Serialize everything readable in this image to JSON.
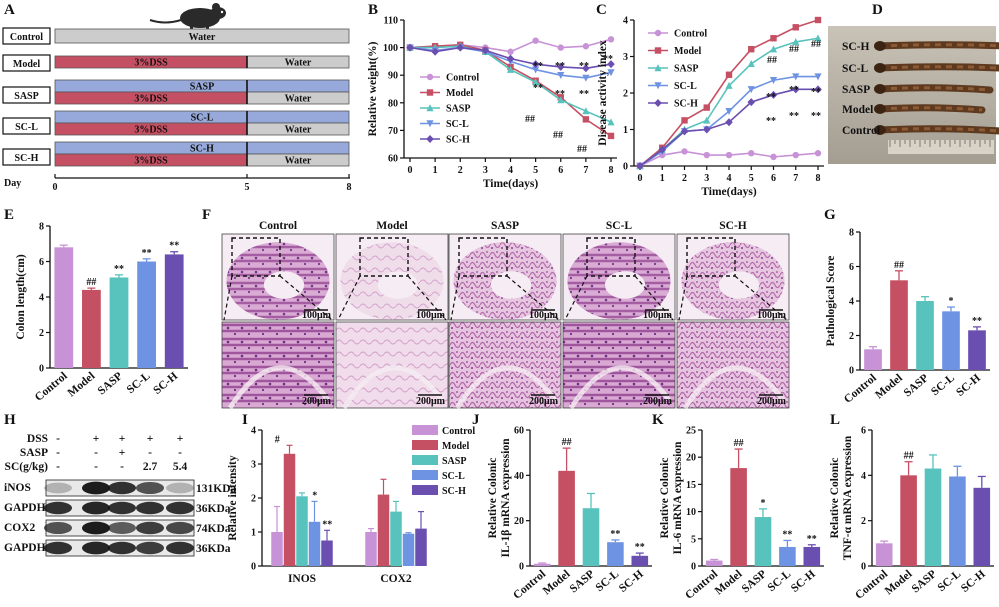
{
  "colors": {
    "control": "#c892d6",
    "model": "#c65063",
    "sasp": "#58c2bc",
    "scl": "#6f93e3",
    "sch": "#6a4fb0",
    "dss_bar": "#c65063",
    "water_bar": "#cccccc",
    "treat_bar": "#97a9da"
  },
  "panelA": {
    "letter": "A",
    "rows": [
      {
        "label": "Control",
        "top": "",
        "dss": "",
        "water": "Water"
      },
      {
        "label": "Model",
        "top": "",
        "dss": "3%DSS",
        "water": "Water"
      },
      {
        "label": "SASP",
        "top": "SASP",
        "dss": "3%DSS",
        "water": "Water"
      },
      {
        "label": "SC-L",
        "top": "SC-L",
        "dss": "3%DSS",
        "water": "Water"
      },
      {
        "label": "SC-H",
        "top": "SC-H",
        "dss": "3%DSS",
        "water": "Water"
      }
    ],
    "axis_label": "Day",
    "ticks": [
      "0",
      "5",
      "8"
    ]
  },
  "panelB": {
    "letter": "B",
    "chart_data": {
      "type": "line",
      "x": [
        0,
        1,
        2,
        3,
        4,
        5,
        6,
        7,
        8
      ],
      "xlabel": "Time(days)",
      "ylabel": "Relative weight(%)",
      "ylim": [
        60,
        110
      ],
      "yticks": [
        "60",
        "70",
        "80",
        "90",
        "100",
        "110"
      ],
      "xticks": [
        "0",
        "1",
        "2",
        "3",
        "4",
        "5",
        "6",
        "7",
        "8"
      ],
      "series": [
        {
          "name": "Control",
          "values": [
            100,
            100.5,
            101,
            100,
            98.5,
            102.5,
            100,
            100.5,
            103
          ]
        },
        {
          "name": "Model",
          "values": [
            100,
            100.5,
            101,
            99,
            93,
            88,
            82,
            74,
            68
          ]
        },
        {
          "name": "SASP",
          "values": [
            100,
            100,
            100.5,
            98.5,
            92,
            87.5,
            81,
            77,
            73
          ]
        },
        {
          "name": "SC-L",
          "values": [
            100,
            99,
            100,
            98.5,
            95,
            92,
            90,
            89,
            91
          ]
        },
        {
          "name": "SC-H",
          "values": [
            100,
            98.5,
            100,
            99,
            96,
            94,
            93,
            92.5,
            94
          ]
        }
      ],
      "annotations": [
        "**",
        "**",
        "**",
        "**",
        "**",
        "**",
        "**",
        "##",
        "##",
        "##"
      ]
    }
  },
  "panelC": {
    "letter": "C",
    "chart_data": {
      "type": "line",
      "x": [
        0,
        1,
        2,
        3,
        4,
        5,
        6,
        7,
        8
      ],
      "xlabel": "Time(days)",
      "ylabel": "Disease activity index",
      "ylim": [
        0,
        4
      ],
      "yticks": [
        "0",
        "1",
        "2",
        "3",
        "4"
      ],
      "xticks": [
        "0",
        "1",
        "2",
        "3",
        "4",
        "5",
        "6",
        "7",
        "8"
      ],
      "series": [
        {
          "name": "Control",
          "values": [
            0,
            0.3,
            0.4,
            0.3,
            0.3,
            0.35,
            0.25,
            0.3,
            0.35
          ]
        },
        {
          "name": "Model",
          "values": [
            0,
            0.5,
            1.25,
            1.6,
            2.5,
            3.2,
            3.5,
            3.8,
            4.0
          ]
        },
        {
          "name": "SASP",
          "values": [
            0,
            0.45,
            1.0,
            1.25,
            2.2,
            2.8,
            3.2,
            3.4,
            3.5
          ]
        },
        {
          "name": "SC-L",
          "values": [
            0,
            0.4,
            0.95,
            1.0,
            1.5,
            2.1,
            2.35,
            2.45,
            2.45
          ]
        },
        {
          "name": "SC-H",
          "values": [
            0,
            0.45,
            0.95,
            1.0,
            1.2,
            1.75,
            1.95,
            2.1,
            2.1
          ]
        }
      ],
      "annotations": [
        "##",
        "##",
        "##",
        "**",
        "**",
        "**",
        "**",
        "**",
        "**"
      ]
    }
  },
  "panelD": {
    "letter": "D",
    "labels": [
      "SC-H",
      "SC-L",
      "SASP",
      "Model",
      "Control"
    ]
  },
  "panelE": {
    "letter": "E",
    "chart_data": {
      "type": "bar",
      "categories": [
        "Control",
        "Model",
        "SASP",
        "SC-L",
        "SC-H"
      ],
      "values": [
        6.8,
        4.4,
        5.1,
        6.0,
        6.4
      ],
      "errors": [
        0.12,
        0.1,
        0.15,
        0.15,
        0.15
      ],
      "ylabel": "Colon length(cm)",
      "ylim": [
        0,
        8
      ],
      "yticks": [
        "0",
        "2",
        "4",
        "6",
        "8"
      ],
      "annotations": [
        "",
        "##",
        "**",
        "**",
        "**"
      ]
    }
  },
  "panelF": {
    "letter": "F",
    "groups": [
      "Control",
      "Model",
      "SASP",
      "SC-L",
      "SC-H"
    ],
    "scale_top": "100μm",
    "scale_bottom": "200μm"
  },
  "panelG": {
    "letter": "G",
    "chart_data": {
      "type": "bar",
      "categories": [
        "Control",
        "Model",
        "SASP",
        "SC-L",
        "SC-H"
      ],
      "values": [
        1.2,
        5.2,
        4.0,
        3.4,
        2.3
      ],
      "errors": [
        0.15,
        0.55,
        0.25,
        0.25,
        0.2
      ],
      "ylabel": "Pathological Score",
      "ylim": [
        0,
        8
      ],
      "yticks": [
        "0",
        "2",
        "4",
        "6",
        "8"
      ],
      "annotations": [
        "",
        "##",
        "",
        "*",
        "**"
      ]
    }
  },
  "panelH": {
    "letter": "H",
    "rows": [
      {
        "label": "DSS",
        "values": [
          "-",
          "+",
          "+",
          "+",
          "+"
        ]
      },
      {
        "label": "SASP",
        "values": [
          "-",
          "-",
          "+",
          "-",
          "-"
        ]
      },
      {
        "label": "SC(g/kg)",
        "values": [
          "-",
          "-",
          "-",
          "2.7",
          "5.4"
        ]
      }
    ],
    "blots": [
      {
        "name": "iNOS",
        "size": "131KDa"
      },
      {
        "name": "GAPDH",
        "size": "36KDa"
      },
      {
        "name": "COX2",
        "size": "74KDa"
      },
      {
        "name": "GAPDH",
        "size": "36KDa"
      }
    ]
  },
  "panelI": {
    "letter": "I",
    "chart_data": {
      "type": "bar",
      "categories": [
        "INOS",
        "COX2"
      ],
      "series": [
        {
          "name": "Control",
          "values": [
            1.0,
            1.0
          ],
          "errors": [
            0.75,
            0.1
          ]
        },
        {
          "name": "Model",
          "values": [
            3.3,
            2.1
          ],
          "errors": [
            0.25,
            0.45
          ]
        },
        {
          "name": "SASP",
          "values": [
            2.05,
            1.6
          ],
          "errors": [
            0.1,
            0.3
          ]
        },
        {
          "name": "SC-L",
          "values": [
            1.3,
            0.95
          ],
          "errors": [
            0.6,
            0.03
          ]
        },
        {
          "name": "SC-H",
          "values": [
            0.75,
            1.1
          ],
          "errors": [
            0.3,
            0.5
          ]
        }
      ],
      "ylabel": "Relative intensity",
      "ylim": [
        0,
        4
      ],
      "yticks": [
        "0",
        "1",
        "2",
        "3",
        "4"
      ],
      "annotations": [
        "#",
        "*",
        "**"
      ]
    }
  },
  "panelJ": {
    "letter": "J",
    "chart_data": {
      "type": "bar",
      "categories": [
        "Control",
        "Model",
        "SASP",
        "SC-L",
        "SC-H"
      ],
      "values": [
        1.0,
        42,
        25.5,
        10.5,
        4.5
      ],
      "errors": [
        0.3,
        10,
        6.5,
        1.0,
        1.2
      ],
      "ylabel": "Relative Colonic IL-1β mRNA expression",
      "ylabel_lines": [
        "Relative Colonic",
        "IL-1β mRNA expression"
      ],
      "ylim": [
        0,
        60
      ],
      "yticks": [
        "0",
        "20",
        "40",
        "60"
      ],
      "annotations": [
        "",
        "##",
        "",
        "**",
        "**"
      ]
    }
  },
  "panelK": {
    "letter": "K",
    "chart_data": {
      "type": "bar",
      "categories": [
        "Control",
        "Model",
        "SASP",
        "SC-L",
        "SC-H"
      ],
      "values": [
        1.0,
        18,
        9.0,
        3.5,
        3.5
      ],
      "errors": [
        0.2,
        3.5,
        1.5,
        1.2,
        0.4
      ],
      "ylabel": "Relative Colonic IL-6 mRNA expression",
      "ylabel_lines": [
        "Relative Colonic",
        "IL-6 mRNA expression"
      ],
      "ylim": [
        0,
        25
      ],
      "yticks": [
        "0",
        "5",
        "10",
        "15",
        "20",
        "25"
      ],
      "annotations": [
        "",
        "##",
        "*",
        "**",
        "**"
      ]
    }
  },
  "panelL": {
    "letter": "L",
    "chart_data": {
      "type": "bar",
      "categories": [
        "Control",
        "Model",
        "SASP",
        "SC-L",
        "SC-H"
      ],
      "values": [
        1.0,
        4.0,
        4.3,
        3.95,
        3.45
      ],
      "errors": [
        0.1,
        0.6,
        0.6,
        0.45,
        0.5
      ],
      "ylabel": "Relative Colonic TNF-α mRNA expression",
      "ylabel_lines": [
        "Relative Colonic",
        "TNF-α mRNA expression"
      ],
      "ylim": [
        0,
        6
      ],
      "yticks": [
        "0",
        "2",
        "4",
        "6"
      ],
      "annotations": [
        "",
        "##",
        "",
        "",
        ""
      ]
    }
  }
}
